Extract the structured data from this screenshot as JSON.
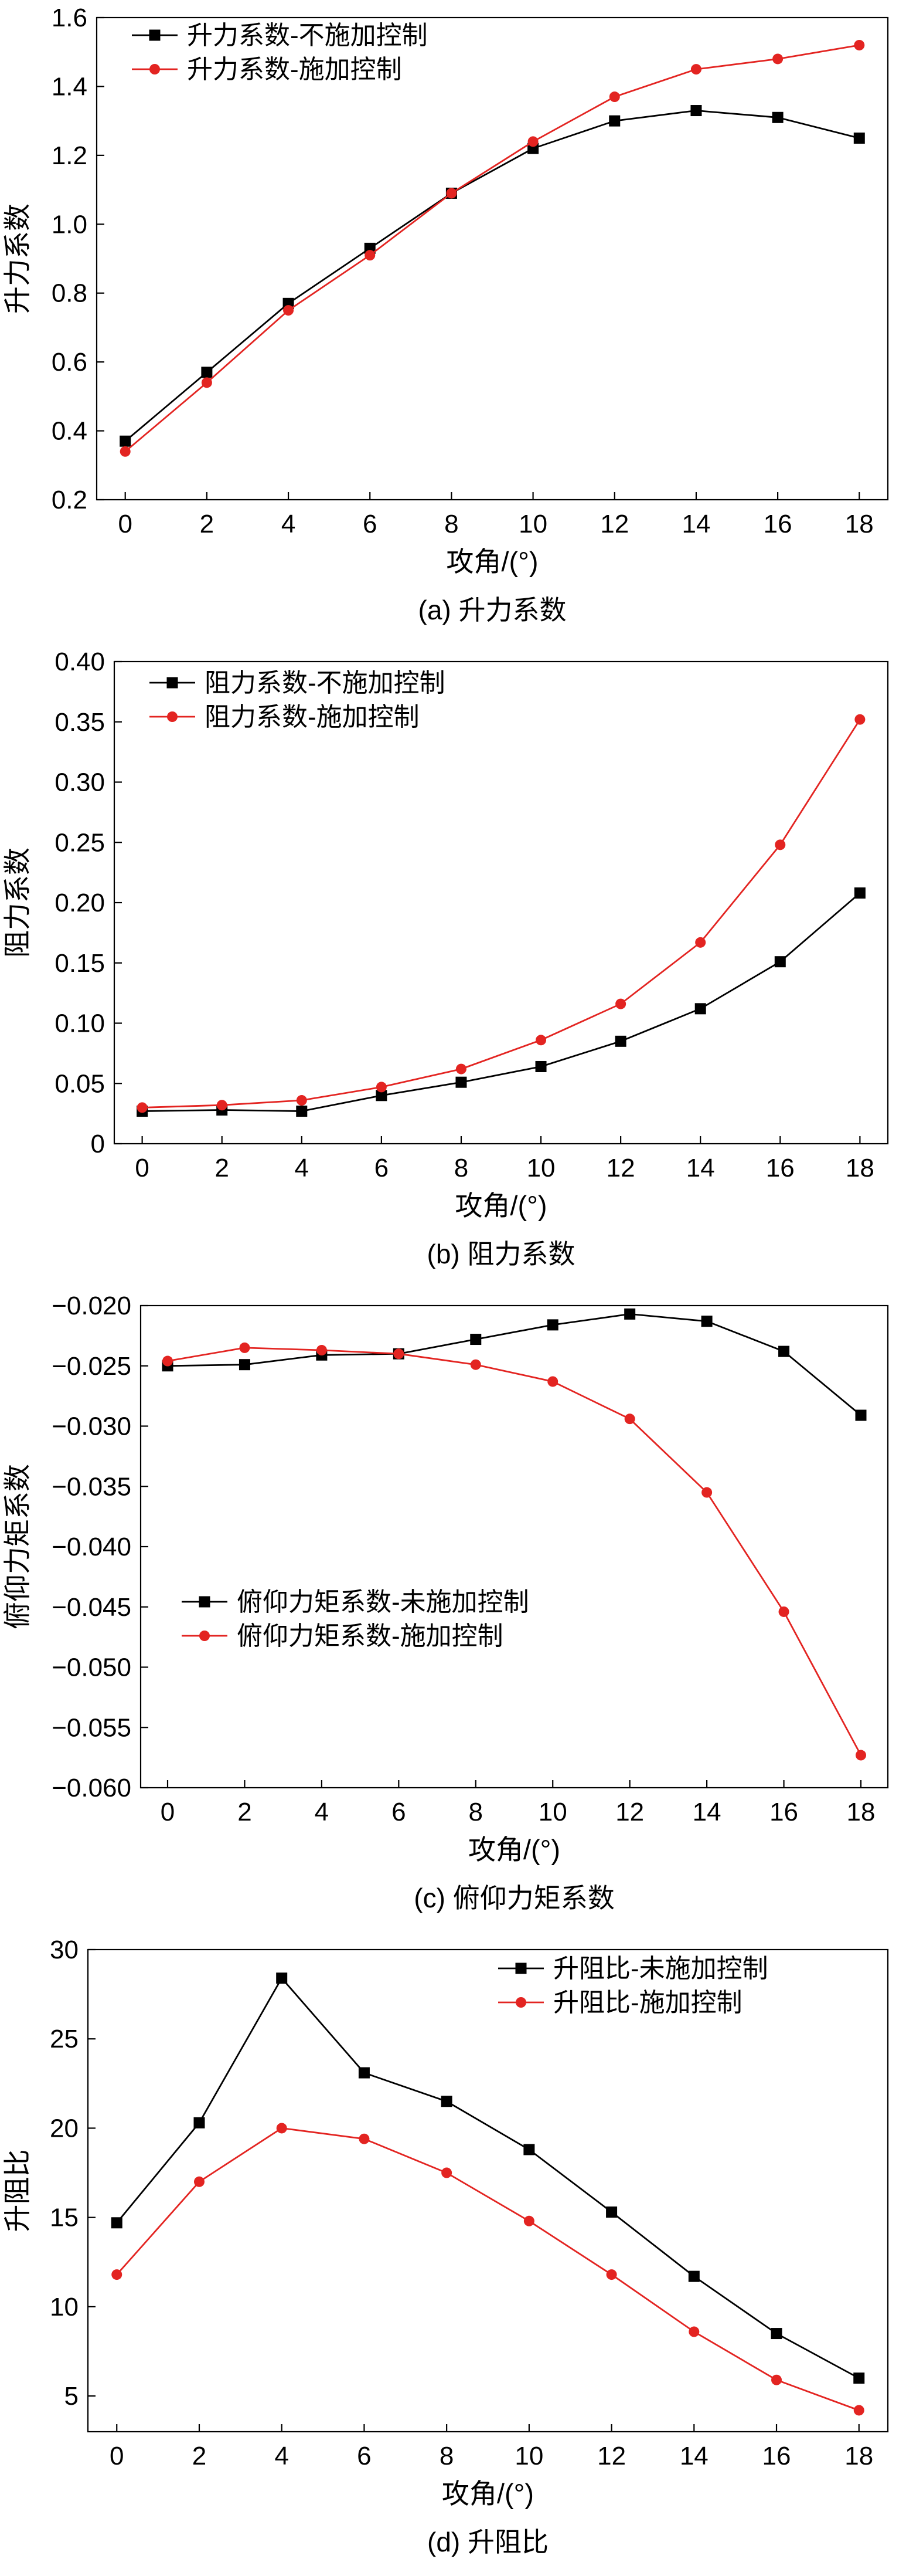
{
  "page": {
    "background": "#ffffff",
    "accent_red": "#e32421",
    "accent_black": "#000000"
  },
  "chart_data": [
    {
      "id": "a",
      "type": "line",
      "caption": "(a) 升力系数",
      "xlabel": "攻角/(°)",
      "ylabel": "升力系数",
      "x": [
        0,
        2,
        4,
        6,
        8,
        10,
        12,
        14,
        16,
        18
      ],
      "xticks": [
        0,
        2,
        4,
        6,
        8,
        10,
        12,
        14,
        16,
        18
      ],
      "xtick_labels": [
        "0",
        "2",
        "4",
        "6",
        "8",
        "10",
        "12",
        "14",
        "16",
        "18"
      ],
      "xlim": [
        -0.7,
        18.7
      ],
      "ylim": [
        0.2,
        1.6
      ],
      "yticks": [
        0.2,
        0.4,
        0.6,
        0.8,
        1.0,
        1.2,
        1.4,
        1.6
      ],
      "ytick_labels": [
        "0.2",
        "0.4",
        "0.6",
        "0.8",
        "1.0",
        "1.2",
        "1.4",
        "1.6"
      ],
      "grid": false,
      "legend_position": "top-left",
      "series": [
        {
          "name": "升力系数-不施加控制",
          "color": "#000000",
          "marker": "square",
          "values": [
            0.37,
            0.57,
            0.77,
            0.93,
            1.09,
            1.22,
            1.3,
            1.33,
            1.31,
            1.25
          ]
        },
        {
          "name": "升力系数-施加控制",
          "color": "#e32421",
          "marker": "circle",
          "values": [
            0.34,
            0.54,
            0.75,
            0.91,
            1.09,
            1.24,
            1.37,
            1.45,
            1.48,
            1.52
          ]
        }
      ],
      "layout": {
        "left": 165,
        "legend_dx": 60,
        "legend_dy": 30
      }
    },
    {
      "id": "b",
      "type": "line",
      "caption": "(b) 阻力系数",
      "xlabel": "攻角/(°)",
      "ylabel": "阻力系数",
      "x": [
        0,
        2,
        4,
        6,
        8,
        10,
        12,
        14,
        16,
        18
      ],
      "xticks": [
        0,
        2,
        4,
        6,
        8,
        10,
        12,
        14,
        16,
        18
      ],
      "xtick_labels": [
        "0",
        "2",
        "4",
        "6",
        "8",
        "10",
        "12",
        "14",
        "16",
        "18"
      ],
      "xlim": [
        -0.7,
        18.7
      ],
      "ylim": [
        0,
        0.4
      ],
      "yticks": [
        0,
        0.05,
        0.1,
        0.15,
        0.2,
        0.25,
        0.3,
        0.35,
        0.4
      ],
      "ytick_labels": [
        "0",
        "0.05",
        "0.10",
        "0.15",
        "0.20",
        "0.25",
        "0.30",
        "0.35",
        "0.40"
      ],
      "grid": false,
      "legend_position": "top-left",
      "series": [
        {
          "name": "阻力系数-不施加控制",
          "color": "#000000",
          "marker": "square",
          "values": [
            0.027,
            0.028,
            0.027,
            0.04,
            0.051,
            0.064,
            0.085,
            0.112,
            0.151,
            0.208
          ]
        },
        {
          "name": "阻力系数-施加控制",
          "color": "#e32421",
          "marker": "circle",
          "values": [
            0.03,
            0.032,
            0.036,
            0.047,
            0.062,
            0.086,
            0.116,
            0.167,
            0.248,
            0.352
          ]
        }
      ],
      "layout": {
        "left": 195,
        "legend_dx": 60,
        "legend_dy": 36
      }
    },
    {
      "id": "c",
      "type": "line",
      "caption": "(c) 俯仰力矩系数",
      "xlabel": "攻角/(°)",
      "ylabel": "俯仰力矩系数",
      "x": [
        0,
        2,
        4,
        6,
        8,
        10,
        12,
        14,
        16,
        18
      ],
      "xticks": [
        0,
        2,
        4,
        6,
        8,
        10,
        12,
        14,
        16,
        18
      ],
      "xtick_labels": [
        "0",
        "2",
        "4",
        "6",
        "8",
        "10",
        "12",
        "14",
        "16",
        "18"
      ],
      "xlim": [
        -0.7,
        18.7
      ],
      "ylim": [
        -0.06,
        -0.02
      ],
      "yticks": [
        -0.02,
        -0.025,
        -0.03,
        -0.035,
        -0.04,
        -0.045,
        -0.05,
        -0.055,
        -0.06
      ],
      "ytick_labels": [
        "−0.020",
        "−0.025",
        "−0.030",
        "−0.035",
        "−0.040",
        "−0.045",
        "−0.050",
        "−0.055",
        "−0.060"
      ],
      "grid": false,
      "legend_position": "center-left-lower",
      "series": [
        {
          "name": "俯仰力矩系数-未施加控制",
          "color": "#000000",
          "marker": "square",
          "values": [
            -0.025,
            -0.0249,
            -0.0241,
            -0.024,
            -0.0228,
            -0.0216,
            -0.0207,
            -0.0213,
            -0.0238,
            -0.0291
          ]
        },
        {
          "name": "俯仰力矩系数-施加控制",
          "color": "#e32421",
          "marker": "circle",
          "values": [
            -0.0246,
            -0.0235,
            -0.0237,
            -0.024,
            -0.0249,
            -0.0263,
            -0.0294,
            -0.0355,
            -0.0454,
            -0.0573
          ]
        }
      ],
      "layout": {
        "left": 240,
        "legend_dx": 70,
        "legend_dy": 505
      }
    },
    {
      "id": "d",
      "type": "line",
      "caption": "(d) 升阻比",
      "xlabel": "攻角/(°)",
      "ylabel": "升阻比",
      "x": [
        0,
        2,
        4,
        6,
        8,
        10,
        12,
        14,
        16,
        18
      ],
      "xticks": [
        0,
        2,
        4,
        6,
        8,
        10,
        12,
        14,
        16,
        18
      ],
      "xtick_labels": [
        "0",
        "2",
        "4",
        "6",
        "8",
        "10",
        "12",
        "14",
        "16",
        "18"
      ],
      "xlim": [
        -0.7,
        18.7
      ],
      "ylim": [
        3,
        30
      ],
      "yticks": [
        5,
        10,
        15,
        20,
        25,
        30
      ],
      "ytick_labels": [
        "5",
        "10",
        "15",
        "20",
        "25",
        "30"
      ],
      "grid": false,
      "legend_position": "top-right",
      "series": [
        {
          "name": "升阻比-未施加控制",
          "color": "#000000",
          "marker": "square",
          "values": [
            14.7,
            20.3,
            28.4,
            23.1,
            21.5,
            18.8,
            15.3,
            11.7,
            8.5,
            6.0
          ]
        },
        {
          "name": "升阻比-施加控制",
          "color": "#e32421",
          "marker": "circle",
          "values": [
            11.8,
            17.0,
            20.0,
            19.4,
            17.5,
            14.8,
            11.8,
            8.6,
            5.9,
            4.2
          ]
        }
      ],
      "layout": {
        "left": 150,
        "legend_dx": 700,
        "legend_dy": 32
      }
    }
  ]
}
